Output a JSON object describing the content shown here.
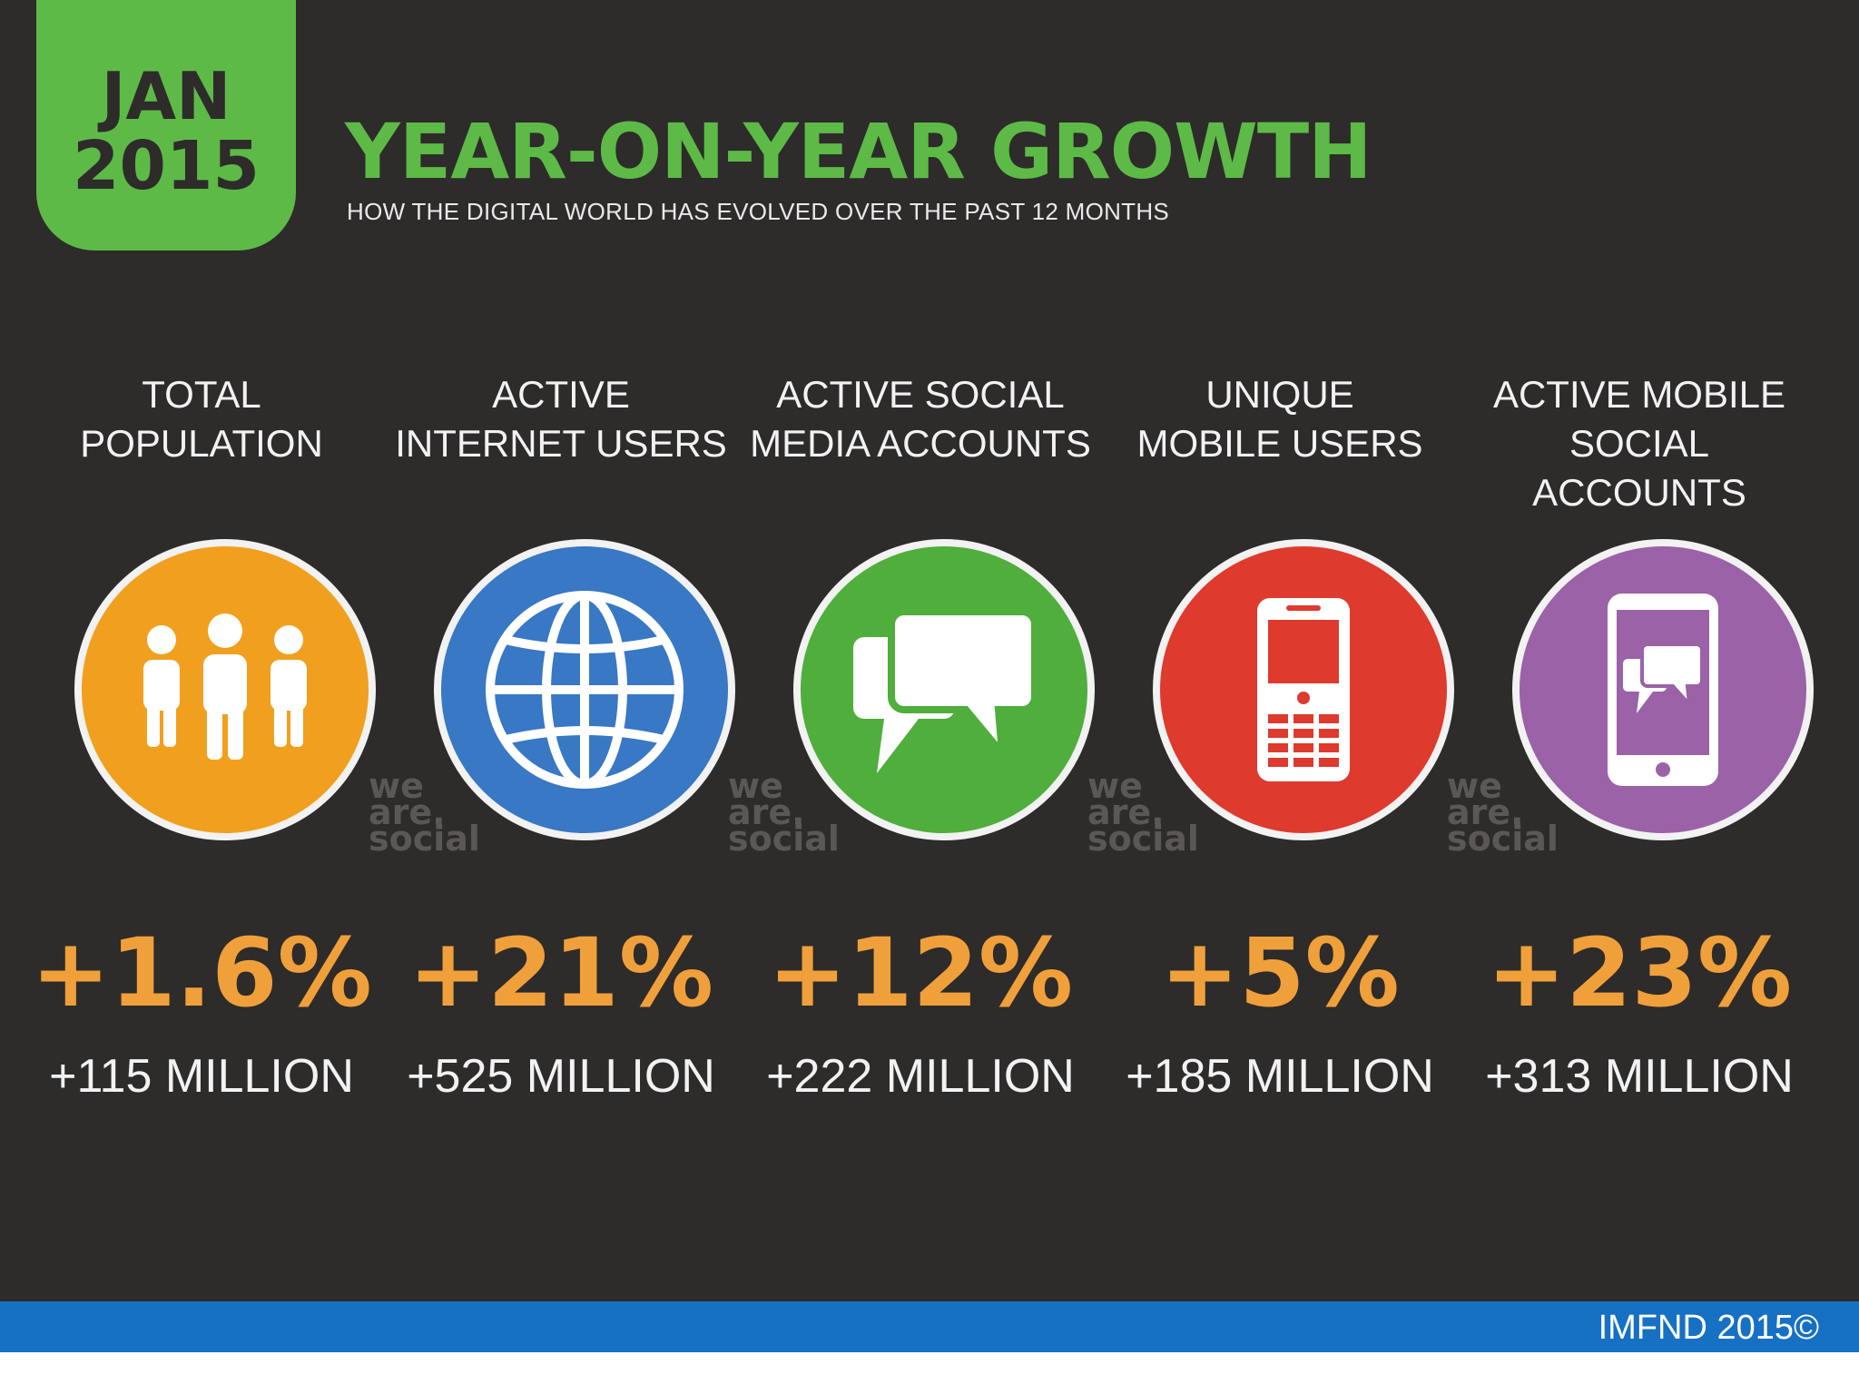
{
  "badge": {
    "month": "JAN",
    "year": "2015"
  },
  "header": {
    "title": "YEAR-ON-YEAR GROWTH",
    "subtitle": "HOW THE DIGITAL WORLD HAS EVOLVED OVER THE PAST 12 MONTHS"
  },
  "colors": {
    "background": "#2e2b2b",
    "brand_green": "#5dba47",
    "growth_orange": "#f0a03a",
    "footer_blue": "#1670c4"
  },
  "stats": [
    {
      "label": "TOTAL\nPOPULATION",
      "percent": "+1.6%",
      "absolute": "+115 MILLION",
      "icon": "people-icon",
      "color": "#f0a01e",
      "watermark": "we\nare.\nsocial"
    },
    {
      "label": "ACTIVE\nINTERNET USERS",
      "percent": "+21%",
      "absolute": "+525 MILLION",
      "icon": "globe-icon",
      "color": "#3878c4",
      "watermark": "we\nare.\nsocial"
    },
    {
      "label": "ACTIVE SOCIAL\nMEDIA ACCOUNTS",
      "percent": "+12%",
      "absolute": "+222 MILLION",
      "icon": "chat-bubbles-icon",
      "color": "#4fae3c",
      "watermark": "we\nare.\nsocial"
    },
    {
      "label": "UNIQUE\nMOBILE USERS",
      "percent": "+5%",
      "absolute": "+185 MILLION",
      "icon": "mobile-phone-icon",
      "color": "#de3a2e",
      "watermark": "we\nare.\nsocial"
    },
    {
      "label": "ACTIVE MOBILE\nSOCIAL ACCOUNTS",
      "percent": "+23%",
      "absolute": "+313 MILLION",
      "icon": "smartphone-chat-icon",
      "color": "#9b62a8"
    }
  ],
  "footer": {
    "text": "IMFND 2015©"
  }
}
